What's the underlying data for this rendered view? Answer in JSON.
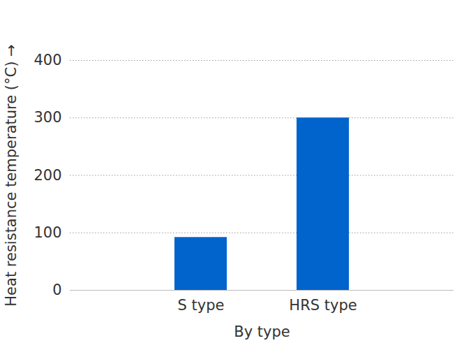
{
  "chart_data": {
    "type": "bar",
    "categories": [
      "S type",
      "HRS type"
    ],
    "values": [
      92,
      300
    ],
    "color": "#0064cc",
    "xlabel": "By type",
    "ylabel": "Heat resistance temperature (°C)",
    "ylim": [
      0,
      400
    ],
    "yticks": [
      0,
      100,
      200,
      300,
      400
    ],
    "grid": true
  }
}
